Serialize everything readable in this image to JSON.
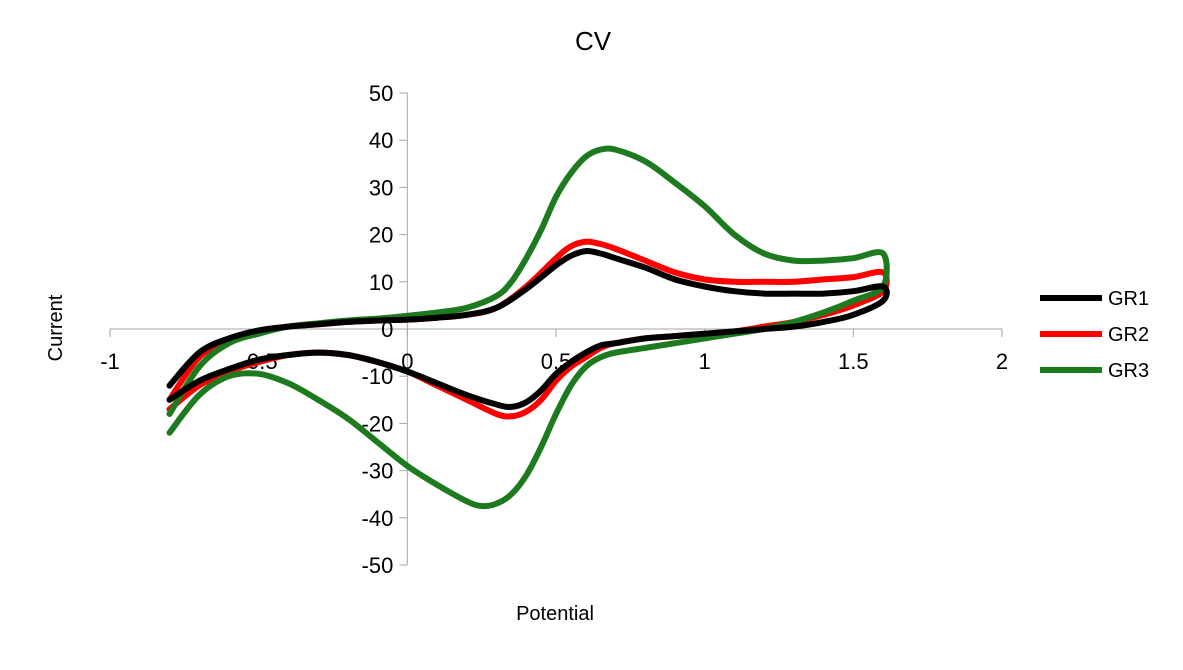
{
  "chart_data": {
    "type": "line",
    "title": "CV",
    "xlabel": "Potential",
    "ylabel": "Current",
    "xlim": [
      -1,
      2
    ],
    "ylim": [
      -50,
      50
    ],
    "x_ticks": [
      -1,
      -0.5,
      0,
      0.5,
      1,
      1.5,
      2
    ],
    "x_tick_labels": [
      "-1",
      "-0.5",
      "0",
      "0.5",
      "1",
      "1.5",
      "2"
    ],
    "y_ticks": [
      50,
      40,
      30,
      20,
      10,
      0,
      -10,
      -20,
      -30,
      -40,
      -50
    ],
    "y_tick_labels": [
      "50",
      "40",
      "30",
      "20",
      "10",
      "0",
      "-10",
      "-20",
      "-30",
      "-40",
      "-50"
    ],
    "grid": false,
    "legend_position": "right",
    "series": [
      {
        "name": "GR2",
        "color": "#ff0000",
        "x": [
          -0.8,
          -0.7,
          -0.6,
          -0.5,
          -0.4,
          -0.3,
          -0.2,
          -0.1,
          0,
          0.1,
          0.2,
          0.3,
          0.4,
          0.5,
          0.55,
          0.6,
          0.65,
          0.7,
          0.8,
          0.9,
          1.0,
          1.1,
          1.2,
          1.3,
          1.4,
          1.5,
          1.6,
          1.6,
          1.5,
          1.4,
          1.3,
          1.2,
          1.1,
          1.0,
          0.9,
          0.8,
          0.7,
          0.65,
          0.6,
          0.55,
          0.5,
          0.45,
          0.4,
          0.35,
          0.3,
          0.2,
          0.1,
          0,
          -0.1,
          -0.2,
          -0.3,
          -0.4,
          -0.5,
          -0.6,
          -0.7,
          -0.8
        ],
        "y": [
          -15,
          -6,
          -2.5,
          -0.5,
          0.5,
          1,
          1.5,
          1.8,
          2,
          2.4,
          3,
          4.5,
          9,
          15,
          17.5,
          18.5,
          18,
          17,
          14.5,
          12,
          10.5,
          10,
          10,
          10,
          10.5,
          11,
          12,
          8,
          5,
          3,
          1.5,
          0.5,
          -0.5,
          -1,
          -1.5,
          -2,
          -3,
          -4,
          -6,
          -8,
          -11,
          -15,
          -17.5,
          -18.5,
          -18,
          -15,
          -12,
          -9,
          -7,
          -5.5,
          -5,
          -5.5,
          -7,
          -9,
          -12,
          -17
        ]
      },
      {
        "name": "GR3",
        "color": "#1e7a1e",
        "x": [
          -0.8,
          -0.7,
          -0.6,
          -0.5,
          -0.4,
          -0.3,
          -0.2,
          -0.1,
          0,
          0.1,
          0.2,
          0.3,
          0.35,
          0.4,
          0.45,
          0.5,
          0.55,
          0.6,
          0.65,
          0.7,
          0.8,
          0.9,
          1.0,
          1.1,
          1.2,
          1.3,
          1.4,
          1.5,
          1.6,
          1.6,
          1.5,
          1.4,
          1.3,
          1.2,
          1.1,
          1.0,
          0.9,
          0.8,
          0.7,
          0.65,
          0.6,
          0.55,
          0.5,
          0.45,
          0.4,
          0.35,
          0.3,
          0.25,
          0.2,
          0.1,
          0,
          -0.1,
          -0.2,
          -0.3,
          -0.4,
          -0.5,
          -0.6,
          -0.7,
          -0.8
        ],
        "y": [
          -18,
          -8,
          -3,
          -1,
          0.5,
          1.2,
          1.8,
          2.2,
          2.8,
          3.5,
          4.5,
          7,
          10,
          15,
          21,
          28,
          33,
          36.5,
          38,
          38,
          35.5,
          31,
          26,
          20,
          16,
          14.5,
          14.5,
          15,
          16,
          9,
          6,
          3.5,
          1.5,
          0,
          -1,
          -2,
          -3,
          -4,
          -5,
          -6,
          -8,
          -12,
          -18,
          -25,
          -31,
          -35,
          -37,
          -37.5,
          -36.5,
          -33,
          -29,
          -24,
          -19,
          -15,
          -11.5,
          -9.5,
          -10,
          -14,
          -22
        ]
      },
      {
        "name": "GR1",
        "color": "#000000",
        "x": [
          -0.8,
          -0.7,
          -0.6,
          -0.5,
          -0.4,
          -0.3,
          -0.2,
          -0.1,
          0,
          0.1,
          0.2,
          0.3,
          0.4,
          0.5,
          0.55,
          0.6,
          0.65,
          0.7,
          0.8,
          0.9,
          1.0,
          1.1,
          1.2,
          1.3,
          1.4,
          1.5,
          1.6,
          1.6,
          1.5,
          1.4,
          1.3,
          1.2,
          1.1,
          1.0,
          0.9,
          0.8,
          0.7,
          0.65,
          0.6,
          0.55,
          0.5,
          0.45,
          0.4,
          0.35,
          0.3,
          0.2,
          0.1,
          0,
          -0.1,
          -0.2,
          -0.3,
          -0.4,
          -0.5,
          -0.6,
          -0.7,
          -0.8
        ],
        "y": [
          -12,
          -5,
          -2,
          -0.3,
          0.5,
          1,
          1.5,
          1.8,
          2,
          2.4,
          3,
          4.5,
          8.5,
          13.5,
          15.5,
          16.5,
          16,
          15,
          13,
          10.5,
          9,
          8,
          7.5,
          7.5,
          7.5,
          8,
          9,
          6,
          3,
          1.5,
          0.5,
          0,
          -0.5,
          -1,
          -1.5,
          -2,
          -3,
          -3.5,
          -5,
          -7,
          -9.5,
          -13,
          -15.5,
          -16.5,
          -16,
          -14,
          -11.5,
          -9,
          -7,
          -5.5,
          -5,
          -5.5,
          -6.5,
          -8.5,
          -11,
          -15
        ]
      }
    ],
    "legend": [
      {
        "label": "GR1",
        "color": "#000000"
      },
      {
        "label": "GR2",
        "color": "#ff0000"
      },
      {
        "label": "GR3",
        "color": "#1e7a1e"
      }
    ]
  }
}
